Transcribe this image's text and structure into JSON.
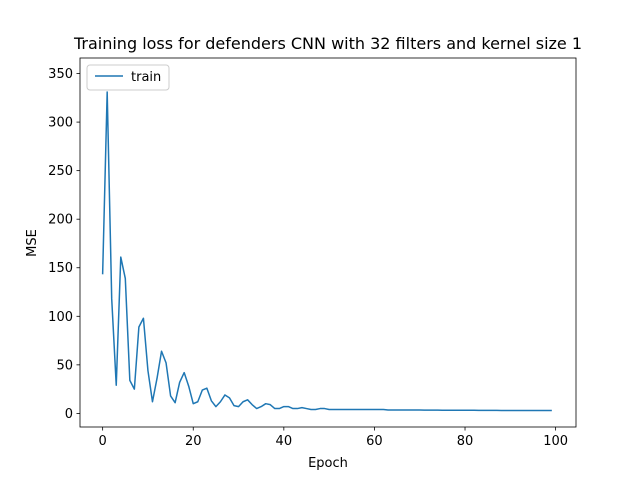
{
  "chart_data": {
    "type": "line",
    "title": "Training loss for defenders CNN with 32 filters and kernel size 1",
    "xlabel": "Epoch",
    "ylabel": "MSE",
    "xlim": [
      -5,
      104.5
    ],
    "ylim": [
      -14,
      366
    ],
    "xticks": [
      0,
      20,
      40,
      60,
      80,
      100
    ],
    "yticks": [
      0,
      50,
      100,
      150,
      200,
      250,
      300,
      350
    ],
    "grid": false,
    "legend_location": "upper left",
    "series": [
      {
        "name": "train",
        "color": "#1f77b4",
        "x": [
          0,
          1,
          2,
          3,
          4,
          5,
          6,
          7,
          8,
          9,
          10,
          11,
          12,
          13,
          14,
          15,
          16,
          17,
          18,
          19,
          20,
          21,
          22,
          23,
          24,
          25,
          26,
          27,
          28,
          29,
          30,
          31,
          32,
          33,
          34,
          35,
          36,
          37,
          38,
          39,
          40,
          41,
          42,
          43,
          44,
          45,
          46,
          47,
          48,
          49,
          50,
          51,
          52,
          53,
          54,
          55,
          56,
          57,
          58,
          59,
          60,
          61,
          62,
          63,
          64,
          65,
          66,
          67,
          68,
          69,
          70,
          71,
          72,
          73,
          74,
          75,
          76,
          77,
          78,
          79,
          80,
          81,
          82,
          83,
          84,
          85,
          86,
          87,
          88,
          89,
          90,
          91,
          92,
          93,
          94,
          95,
          96,
          97,
          98,
          99
        ],
        "values": [
          144,
          331,
          118,
          29,
          161,
          139,
          34,
          25,
          89,
          98,
          44,
          12,
          36,
          64,
          52,
          18,
          11,
          32,
          42,
          28,
          10,
          12,
          24,
          26,
          13,
          7,
          12,
          19,
          16,
          8,
          7,
          12,
          14,
          9,
          5,
          7,
          10,
          9,
          5,
          5,
          7,
          7,
          5,
          5,
          6,
          5,
          4,
          4,
          5,
          5,
          4,
          4,
          4,
          4,
          4,
          4,
          4,
          4,
          4,
          4,
          4,
          4,
          4,
          3.5,
          3.5,
          3.5,
          3.5,
          3.5,
          3.5,
          3.5,
          3.5,
          3.4,
          3.4,
          3.4,
          3.4,
          3.3,
          3.3,
          3.3,
          3.3,
          3.2,
          3.2,
          3.2,
          3.2,
          3.1,
          3.1,
          3.1,
          3.1,
          3.1,
          3,
          3,
          3,
          3,
          3,
          3,
          3,
          3,
          3,
          3,
          3,
          3
        ]
      }
    ]
  }
}
